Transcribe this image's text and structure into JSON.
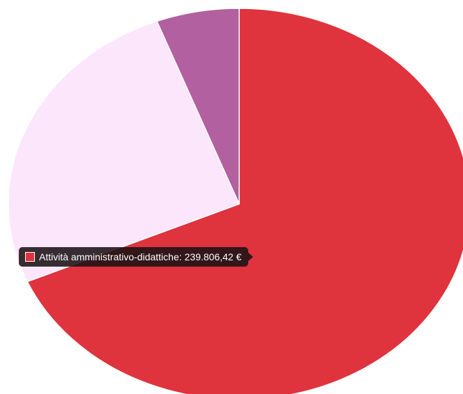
{
  "chart_data": {
    "type": "pie",
    "slices": [
      {
        "color": "#df333d",
        "value": 68.5
      },
      {
        "color": "#fce6fb",
        "value": 25.7
      },
      {
        "color": "#b2609f",
        "value": 5.8
      }
    ],
    "tooltip": {
      "label": "Attività amministrativo-didattiche:",
      "value": "239.806,42 €",
      "swatch_color": "#df333d"
    }
  }
}
